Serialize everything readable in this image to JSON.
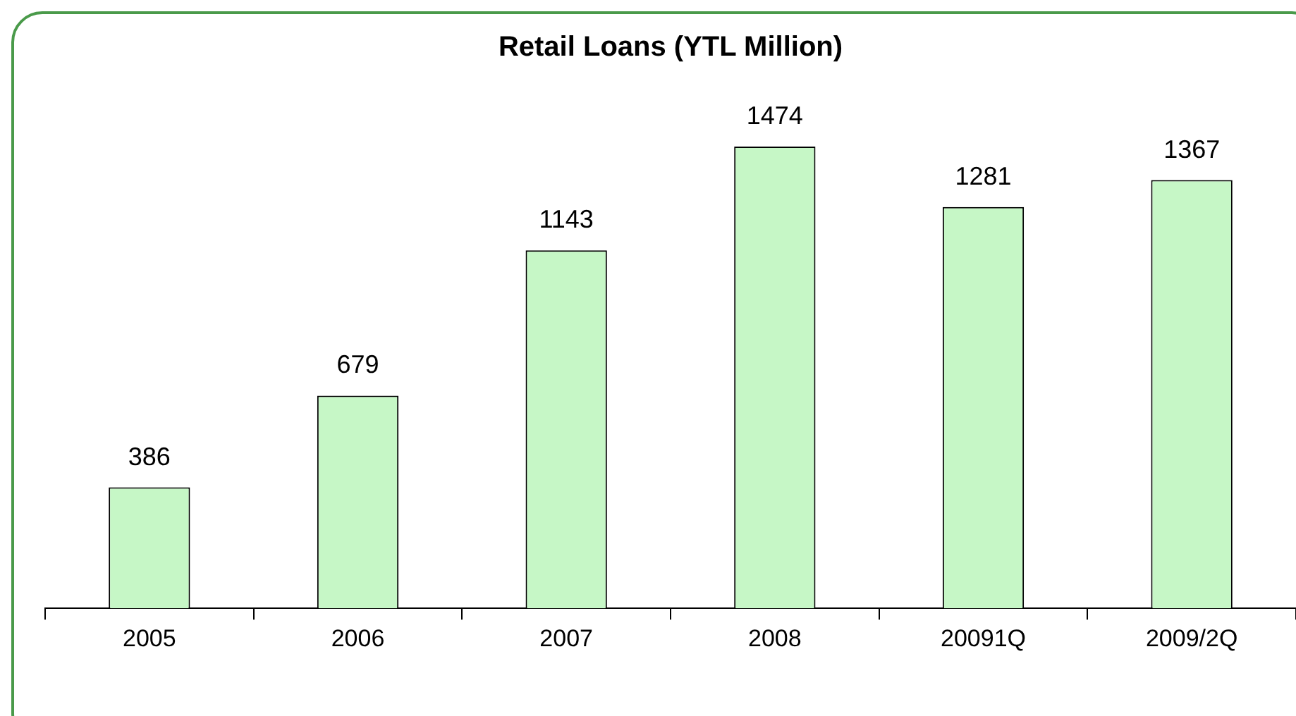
{
  "chart_data": {
    "type": "bar",
    "title": "Retail Loans (YTL Million)",
    "categories": [
      "2005",
      "2006",
      "2007",
      "2008",
      "20091Q",
      "2009/2Q"
    ],
    "values": [
      386,
      679,
      1143,
      1474,
      1281,
      1367
    ],
    "color": "#c6f7c6",
    "data_labels": true,
    "grid": false,
    "legend": false
  }
}
